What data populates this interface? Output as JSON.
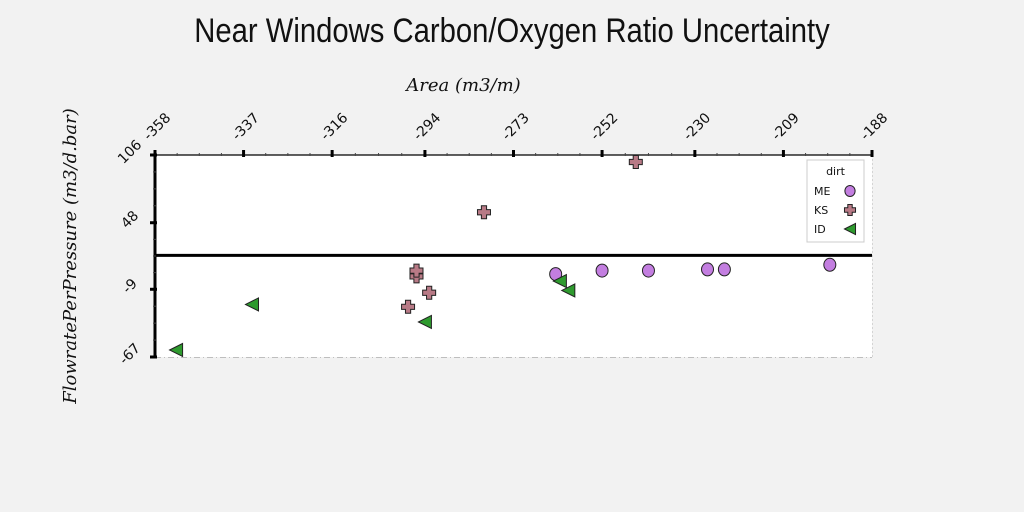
{
  "chart_data": {
    "type": "scatter",
    "title": "Near Windows Carbon/Oxygen Ratio Uncertainty",
    "xlabel": "Area (m3/m)",
    "ylabel": "FlowratePerPressure (m3/d.bar)",
    "x_axis_position": "top",
    "xlim": [
      -358,
      -188
    ],
    "ylim": [
      -67,
      106
    ],
    "xticks": [
      -358,
      -337,
      -316,
      -294,
      -273,
      -252,
      -230,
      -209,
      -188
    ],
    "yticks": [
      -67,
      -9,
      48,
      106
    ],
    "grid": true,
    "reference_line_y": 20,
    "legend": {
      "title": "dirt",
      "position": "top-right"
    },
    "series": [
      {
        "name": "ME",
        "marker": "circle",
        "color": "#c37ee0",
        "x": [
          -263,
          -252,
          -227,
          -241,
          -223,
          -198
        ],
        "y": [
          4,
          7,
          8,
          7,
          8,
          12
        ]
      },
      {
        "name": "KS",
        "marker": "plus",
        "color": "#b87a86",
        "x": [
          -296,
          -296,
          -298,
          -293,
          -280,
          -244
        ],
        "y": [
          2,
          7,
          -24,
          -12,
          57,
          100
        ]
      },
      {
        "name": "ID",
        "marker": "triangle-left",
        "color": "#2e9a2e",
        "x": [
          -353,
          -335,
          -294,
          -262,
          -260
        ],
        "y": [
          -61,
          -22,
          -37,
          -2,
          -10
        ]
      }
    ]
  }
}
